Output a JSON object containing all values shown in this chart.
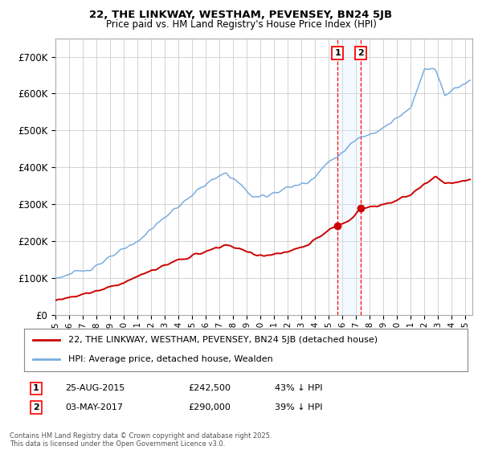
{
  "title1": "22, THE LINKWAY, WESTHAM, PEVENSEY, BN24 5JB",
  "title2": "Price paid vs. HM Land Registry's House Price Index (HPI)",
  "ylim": [
    0,
    750000
  ],
  "yticks": [
    0,
    100000,
    200000,
    300000,
    400000,
    500000,
    600000,
    700000
  ],
  "ytick_labels": [
    "£0",
    "£100K",
    "£200K",
    "£300K",
    "£400K",
    "£500K",
    "£600K",
    "£700K"
  ],
  "xlim_start": 1995.0,
  "xlim_end": 2025.5,
  "hpi_color": "#7aade0",
  "price_color": "#cc0000",
  "sale1_date": 2015.646,
  "sale1_price": 242500,
  "sale2_date": 2017.337,
  "sale2_price": 290000,
  "legend_label1": "22, THE LINKWAY, WESTHAM, PEVENSEY, BN24 5JB (detached house)",
  "legend_label2": "HPI: Average price, detached house, Wealden",
  "footer": "Contains HM Land Registry data © Crown copyright and database right 2025.\nThis data is licensed under the Open Government Licence v3.0.",
  "background_color": "#ffffff",
  "grid_color": "#cccccc",
  "shade_color": "#ddeeff",
  "ann1_date": "25-AUG-2015",
  "ann1_price": "£242,500",
  "ann1_pct": "43% ↓ HPI",
  "ann2_date": "03-MAY-2017",
  "ann2_price": "£290,000",
  "ann2_pct": "39% ↓ HPI"
}
